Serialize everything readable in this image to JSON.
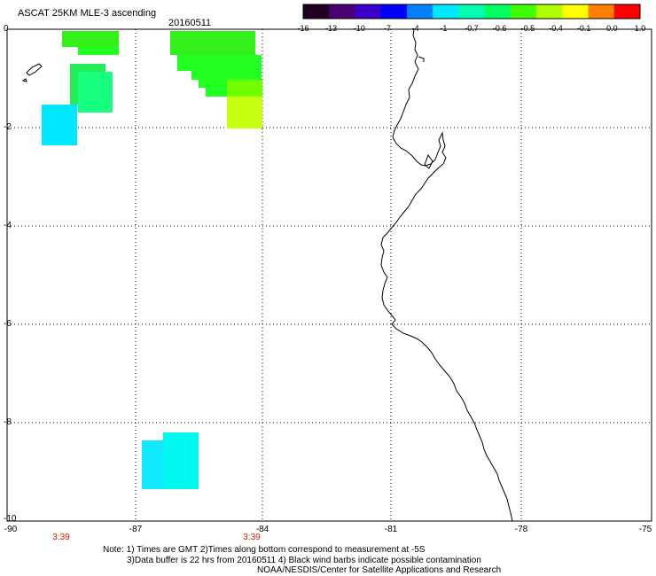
{
  "header": {
    "title": "ASCAT 25KM MLE-3 ascending",
    "date": "20160511"
  },
  "colorbar": {
    "labels": [
      "-16",
      "-13",
      "-10",
      "-7",
      "-4",
      "-1",
      "-0.7",
      "-0.6",
      "-0.5",
      "-0.4",
      "-0.1",
      "0.0",
      "1.0"
    ],
    "colors": [
      "#200020",
      "#4a0070",
      "#3a00c8",
      "#0000ff",
      "#0080ff",
      "#00e8ff",
      "#00ffb0",
      "#00ff60",
      "#40ff00",
      "#b0ff00",
      "#ffff00",
      "#ff8000",
      "#ff0000"
    ]
  },
  "axes": {
    "x_ticks": [
      "-90",
      "-87",
      "-84",
      "-81",
      "-78",
      "-75"
    ],
    "y_ticks": [
      "0",
      "-2",
      "-4",
      "-6",
      "-8",
      "-10"
    ],
    "time_labels": [
      "3:39",
      "3:39"
    ]
  },
  "notes": {
    "line1": "Note: 1) Times are GMT 2)Times along bottom correspond to measurement at -5S",
    "line2": "3)Data buffer is 22 hrs from 20160511 4) Black wind barbs indicate possible contamination",
    "line3": "NOAA/NESDIS/Center for Satellite Applications and Research"
  }
}
